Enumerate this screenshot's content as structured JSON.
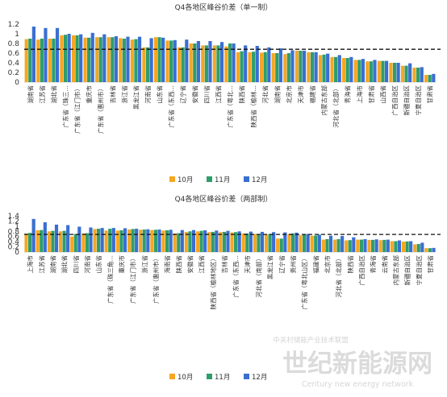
{
  "watermark": {
    "cn_small": "中关村储能产业技术联盟",
    "cn_big": "世纪新能源网",
    "en": "Century new energy network"
  },
  "colors": {
    "oct": "#f5a623",
    "nov": "#2e9e6b",
    "dec": "#3a6fd1",
    "avg": "#111111",
    "axis": "#d9d9d9"
  },
  "chart_data": [
    {
      "type": "bar",
      "title": "Q4各地区峰谷价差（单一制）",
      "ylim": [
        0,
        1.2
      ],
      "yticks": [
        "0",
        "0.2",
        "0.4",
        "0.6",
        "0.8",
        "1",
        "1.2"
      ],
      "reference_line": 0.68,
      "legend": [
        "10月",
        "11月",
        "12月"
      ],
      "categories": [
        "湖南省",
        "江苏省",
        "湖北省",
        "广东省（珠三…",
        "广东省（江门市）",
        "重庆市",
        "广东省（惠州市）",
        "吉林省",
        "浙江省",
        "黑龙江省",
        "河南省",
        "山东省",
        "广东省（东西…",
        "辽宁省",
        "安徽省",
        "四川省",
        "江西省",
        "广东省（粤北…",
        "陕西省",
        "陕西省（榆林…",
        "河北省",
        "湖南省",
        "北京市",
        "天津市",
        "福建省",
        "内蒙古东部",
        "河北省（北部）",
        "青海省",
        "上海市",
        "甘肃省",
        "山西省",
        "广西自治区",
        "新疆自治区",
        "宁夏自治区",
        "甘肃省"
      ],
      "series": [
        {
          "name": "10月",
          "values": [
            0.89,
            0.88,
            0.9,
            0.97,
            0.97,
            0.92,
            0.93,
            0.93,
            0.91,
            0.88,
            0.72,
            0.93,
            0.86,
            0.72,
            0.8,
            0.76,
            0.76,
            0.74,
            0.62,
            0.62,
            0.61,
            0.6,
            0.58,
            0.65,
            0.62,
            0.56,
            0.52,
            0.5,
            0.46,
            0.43,
            0.44,
            0.4,
            0.34,
            0.3,
            0.15
          ]
        },
        {
          "name": "11月",
          "values": [
            0.9,
            0.9,
            0.9,
            0.98,
            0.97,
            0.92,
            0.93,
            0.93,
            0.9,
            0.89,
            0.72,
            0.93,
            0.86,
            0.72,
            0.8,
            0.76,
            0.76,
            0.8,
            0.64,
            0.63,
            0.62,
            0.6,
            0.6,
            0.65,
            0.62,
            0.57,
            0.52,
            0.5,
            0.46,
            0.43,
            0.44,
            0.4,
            0.34,
            0.3,
            0.15
          ]
        },
        {
          "name": "12月",
          "values": [
            1.15,
            1.12,
            1.12,
            1.0,
            0.99,
            1.02,
            0.99,
            0.95,
            0.94,
            0.94,
            0.91,
            0.92,
            0.87,
            0.88,
            0.85,
            0.85,
            0.83,
            0.8,
            0.76,
            0.75,
            0.72,
            0.7,
            0.66,
            0.65,
            0.62,
            0.59,
            0.56,
            0.52,
            0.48,
            0.46,
            0.44,
            0.4,
            0.39,
            0.31,
            0.17
          ]
        }
      ]
    },
    {
      "type": "bar",
      "title": "Q4各地区峰谷价差（两部制）",
      "ylim": [
        0,
        1.4
      ],
      "yticks": [
        "0",
        "0.2",
        "0.4",
        "0.6",
        "0.8",
        "1",
        "1.2",
        "1.4"
      ],
      "reference_line": 0.68,
      "legend": [
        "10月",
        "11月",
        "12月"
      ],
      "categories": [
        "上海市",
        "江苏省",
        "湖南省",
        "湖北省",
        "四川省",
        "河南省",
        "山东省",
        "广东省（珠三角…",
        "重庆市",
        "广东省（江门市）",
        "浙江省",
        "广东省（惠州市）",
        "海南省",
        "陕西省",
        "安徽省",
        "江西省",
        "陕西省（榆林地区）",
        "吉林省",
        "广东省（东西…",
        "天津市",
        "河北省（南部）",
        "黑龙江省",
        "辽宁省",
        "贵州省",
        "广东省（粤北山区）",
        "福建省",
        "北京市",
        "河北省（北部）",
        "陕西省",
        "广西自治区",
        "青海省",
        "云南省",
        "内蒙古东部",
        "新疆自治区",
        "宁夏自治区",
        "甘肃省"
      ],
      "series": [
        {
          "name": "10月",
          "values": [
            0.72,
            0.84,
            0.8,
            0.8,
            0.6,
            0.72,
            0.89,
            0.83,
            0.83,
            0.87,
            0.86,
            0.85,
            0.83,
            0.72,
            0.78,
            0.8,
            0.77,
            0.77,
            0.76,
            0.72,
            0.7,
            0.68,
            0.52,
            0.7,
            0.65,
            0.63,
            0.48,
            0.48,
            0.45,
            0.48,
            0.47,
            0.46,
            0.42,
            0.4,
            0.3,
            0.15
          ]
        },
        {
          "name": "11月",
          "values": [
            0.74,
            0.85,
            0.82,
            0.82,
            0.7,
            0.73,
            0.9,
            0.9,
            0.84,
            0.89,
            0.87,
            0.86,
            0.84,
            0.73,
            0.8,
            0.82,
            0.78,
            0.78,
            0.77,
            0.72,
            0.7,
            0.7,
            0.52,
            0.72,
            0.67,
            0.64,
            0.5,
            0.5,
            0.46,
            0.48,
            0.47,
            0.47,
            0.42,
            0.41,
            0.31,
            0.15
          ]
        },
        {
          "name": "12月",
          "values": [
            1.28,
            1.15,
            1.06,
            1.04,
            0.98,
            0.95,
            0.93,
            0.93,
            0.92,
            0.9,
            0.88,
            0.87,
            0.86,
            0.85,
            0.85,
            0.84,
            0.83,
            0.82,
            0.8,
            0.79,
            0.78,
            0.77,
            0.76,
            0.75,
            0.7,
            0.67,
            0.63,
            0.62,
            0.57,
            0.5,
            0.49,
            0.48,
            0.45,
            0.42,
            0.36,
            0.16
          ]
        }
      ]
    }
  ]
}
